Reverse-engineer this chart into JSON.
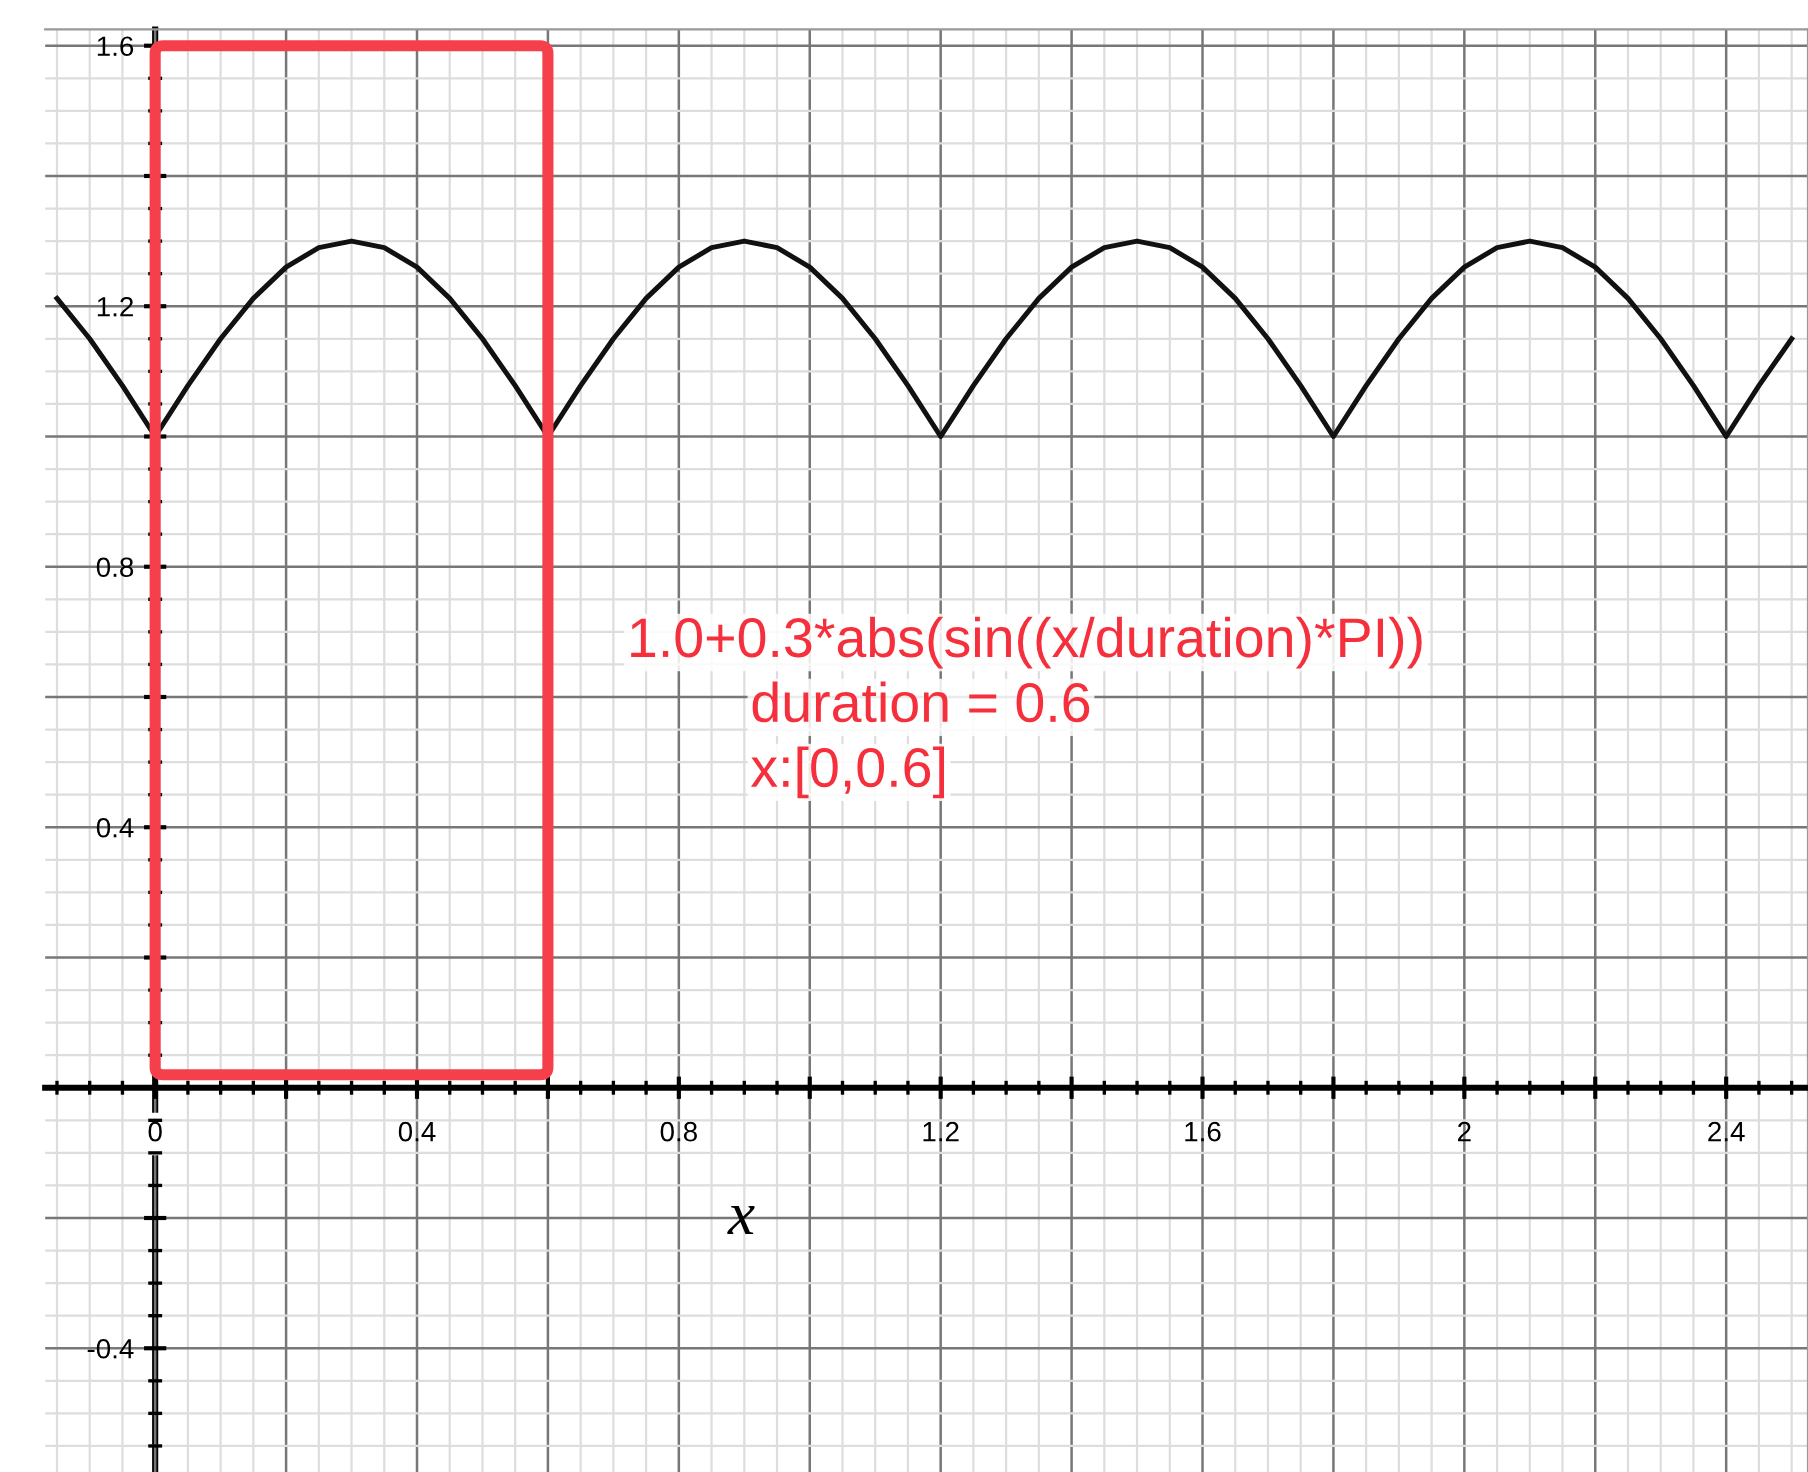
{
  "chart_data": {
    "type": "line",
    "xlabel": "x",
    "x": [
      -0.15,
      -0.1,
      -0.05,
      0,
      0.05,
      0.1,
      0.15,
      0.2,
      0.25,
      0.3,
      0.35,
      0.4,
      0.45,
      0.5,
      0.55,
      0.6,
      0.65,
      0.7,
      0.75,
      0.8,
      0.85,
      0.9,
      0.95,
      1.0,
      1.05,
      1.1,
      1.15,
      1.2,
      1.25,
      1.3,
      1.35,
      1.4,
      1.45,
      1.5,
      1.55,
      1.6,
      1.65,
      1.7,
      1.75,
      1.8,
      1.85,
      1.9,
      1.95,
      2.0,
      2.05,
      2.1,
      2.15,
      2.2,
      2.25,
      2.3,
      2.35,
      2.4,
      2.45,
      2.5
    ],
    "series": [
      {
        "color": "#111111",
        "values": [
          1.212,
          1.15,
          1.078,
          1.0,
          1.078,
          1.15,
          1.212,
          1.26,
          1.29,
          1.3,
          1.29,
          1.26,
          1.212,
          1.15,
          1.078,
          1.0,
          1.078,
          1.15,
          1.212,
          1.26,
          1.29,
          1.3,
          1.29,
          1.26,
          1.212,
          1.15,
          1.078,
          1.0,
          1.078,
          1.15,
          1.212,
          1.26,
          1.29,
          1.3,
          1.29,
          1.26,
          1.212,
          1.15,
          1.078,
          1.0,
          1.078,
          1.15,
          1.212,
          1.26,
          1.29,
          1.3,
          1.29,
          1.26,
          1.212,
          1.15,
          1.078,
          1.0,
          1.078,
          1.15
        ]
      }
    ],
    "xlim": [
      -0.168,
      2.525
    ],
    "ylim": [
      -0.59,
      1.625
    ],
    "xticks": [
      {
        "value": 0,
        "label": "0"
      },
      {
        "value": 0.2,
        "label": null
      },
      0.4,
      {
        "value": 0.6,
        "label": null
      },
      0.8,
      {
        "value": 1.0,
        "label": null
      },
      1.2,
      {
        "value": 1.4,
        "label": null
      },
      1.6,
      {
        "value": 1.8,
        "label": null
      },
      {
        "value": 2.0,
        "label": "2"
      },
      {
        "value": 2.2,
        "label": null
      },
      2.4
    ],
    "yticks": [
      -0.4,
      {
        "value": -0.2,
        "label": null
      },
      {
        "value": 0,
        "label": null
      },
      {
        "value": 0.2,
        "label": null
      },
      0.4,
      {
        "value": 0.6,
        "label": null
      },
      0.8,
      {
        "value": 1.0,
        "label": null
      },
      1.2,
      {
        "value": 1.4,
        "label": null
      },
      1.6
    ],
    "grid": true,
    "marker": "none",
    "line_style": "solid",
    "annotations": [
      "1.0+0.3*abs(sin((x/duration)*PI))",
      "duration = 0.6",
      "x:[0,0.6]"
    ]
  }
}
